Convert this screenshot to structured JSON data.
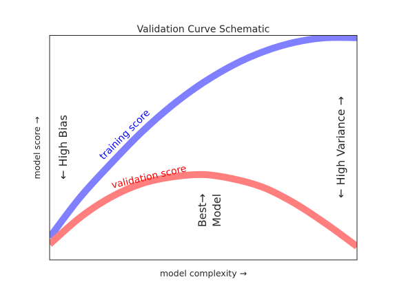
{
  "chart_data": {
    "type": "line",
    "title": "Validation Curve Schematic",
    "xlabel": "model complexity →",
    "ylabel": "model score →",
    "x_ticks": [],
    "y_ticks": [],
    "grid": false,
    "xlim": [
      0,
      1
    ],
    "ylim": [
      0,
      1
    ],
    "series": [
      {
        "name": "training score",
        "color": "#7f7fff",
        "x": [
          0.0,
          0.1,
          0.2,
          0.3,
          0.4,
          0.5,
          0.6,
          0.7,
          0.8,
          0.9,
          1.0
        ],
        "y": [
          0.1,
          0.28,
          0.43,
          0.57,
          0.69,
          0.79,
          0.87,
          0.93,
          0.97,
          0.99,
          0.99
        ]
      },
      {
        "name": "validation score",
        "color": "#ff7f7f",
        "x": [
          0.0,
          0.1,
          0.2,
          0.3,
          0.4,
          0.5,
          0.6,
          0.7,
          0.8,
          0.9,
          1.0
        ],
        "y": [
          0.07,
          0.19,
          0.28,
          0.34,
          0.37,
          0.38,
          0.36,
          0.32,
          0.25,
          0.16,
          0.06
        ]
      }
    ],
    "annotations": [
      {
        "text": "training score",
        "color": "#0000ff"
      },
      {
        "text": "validation score",
        "color": "#ff0000"
      },
      {
        "text": "← High Bias",
        "color": "#262626"
      },
      {
        "text": "← High Variance →",
        "color": "#262626"
      },
      {
        "text": "Best→",
        "color": "#262626"
      },
      {
        "text": "Model",
        "color": "#262626"
      }
    ]
  }
}
